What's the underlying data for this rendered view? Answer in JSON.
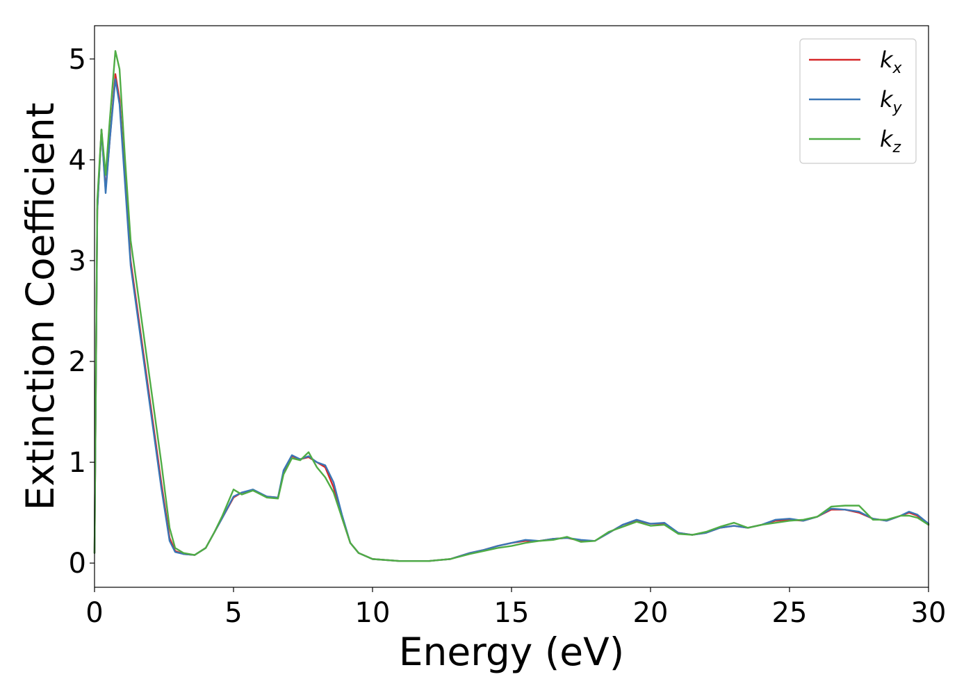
{
  "chart_data": {
    "type": "line",
    "xlabel": "Energy (eV)",
    "ylabel": "Extinction Coefficient",
    "xlim": [
      0,
      30
    ],
    "ylim": [
      -0.24,
      5.33
    ],
    "xticks": [
      0,
      5,
      10,
      15,
      20,
      25,
      30
    ],
    "yticks": [
      0,
      1,
      2,
      3,
      4,
      5
    ],
    "grid": false,
    "legend_position": "top-right",
    "series": [
      {
        "name": "k",
        "subscript": "x",
        "color": "#d62728",
        "x": [
          0,
          0.1,
          0.25,
          0.4,
          0.55,
          0.75,
          0.9,
          1.1,
          1.3,
          1.5,
          1.8,
          2.1,
          2.4,
          2.7,
          2.9,
          3.2,
          3.6,
          4.0,
          4.3,
          4.6,
          5.0,
          5.3,
          5.7,
          6.2,
          6.6,
          6.8,
          7.1,
          7.4,
          7.7,
          8.0,
          8.3,
          8.6,
          8.9,
          9.2,
          9.5,
          10.0,
          11.0,
          12.0,
          12.8,
          13.5,
          14.0,
          14.5,
          15.0,
          15.5,
          16.0,
          16.5,
          17.0,
          17.5,
          18.0,
          18.5,
          19.0,
          19.5,
          20.0,
          20.5,
          21.0,
          21.5,
          22.0,
          22.5,
          23.0,
          23.5,
          24.0,
          24.5,
          25.0,
          25.5,
          26.0,
          26.5,
          27.0,
          27.5,
          28.0,
          28.5,
          29.0,
          29.3,
          29.6,
          30.0
        ],
        "y": [
          0.1,
          3.5,
          4.3,
          3.7,
          4.2,
          4.85,
          4.6,
          3.8,
          3.0,
          2.6,
          2.0,
          1.4,
          0.8,
          0.25,
          0.12,
          0.09,
          0.08,
          0.15,
          0.3,
          0.45,
          0.65,
          0.7,
          0.72,
          0.66,
          0.65,
          0.9,
          1.06,
          1.03,
          1.05,
          1.0,
          0.95,
          0.75,
          0.45,
          0.2,
          0.1,
          0.04,
          0.02,
          0.02,
          0.04,
          0.1,
          0.13,
          0.17,
          0.2,
          0.22,
          0.22,
          0.24,
          0.25,
          0.22,
          0.22,
          0.3,
          0.38,
          0.42,
          0.39,
          0.39,
          0.3,
          0.28,
          0.3,
          0.35,
          0.37,
          0.35,
          0.38,
          0.42,
          0.43,
          0.42,
          0.46,
          0.53,
          0.53,
          0.5,
          0.44,
          0.42,
          0.47,
          0.5,
          0.47,
          0.38
        ]
      },
      {
        "name": "k",
        "subscript": "y",
        "color": "#3a76b6",
        "x": [
          0,
          0.1,
          0.25,
          0.4,
          0.55,
          0.75,
          0.9,
          1.1,
          1.3,
          1.5,
          1.8,
          2.1,
          2.4,
          2.7,
          2.9,
          3.2,
          3.6,
          4.0,
          4.3,
          4.6,
          5.0,
          5.3,
          5.7,
          6.2,
          6.6,
          6.8,
          7.1,
          7.4,
          7.7,
          8.0,
          8.3,
          8.6,
          8.9,
          9.2,
          9.5,
          10.0,
          11.0,
          12.0,
          12.8,
          13.5,
          14.0,
          14.5,
          15.0,
          15.5,
          16.0,
          16.5,
          17.0,
          17.5,
          18.0,
          18.5,
          19.0,
          19.5,
          20.0,
          20.5,
          21.0,
          21.5,
          22.0,
          22.5,
          23.0,
          23.5,
          24.0,
          24.5,
          25.0,
          25.5,
          26.0,
          26.5,
          27.0,
          27.5,
          28.0,
          28.5,
          29.0,
          29.3,
          29.6,
          30.0
        ],
        "y": [
          0.1,
          3.5,
          4.3,
          3.67,
          4.2,
          4.8,
          4.55,
          3.75,
          2.95,
          2.55,
          1.95,
          1.35,
          0.75,
          0.22,
          0.11,
          0.09,
          0.08,
          0.15,
          0.3,
          0.45,
          0.66,
          0.7,
          0.73,
          0.66,
          0.65,
          0.92,
          1.07,
          1.03,
          1.06,
          1.0,
          0.97,
          0.8,
          0.48,
          0.2,
          0.1,
          0.04,
          0.02,
          0.02,
          0.04,
          0.1,
          0.13,
          0.17,
          0.2,
          0.23,
          0.22,
          0.24,
          0.25,
          0.23,
          0.22,
          0.3,
          0.38,
          0.43,
          0.39,
          0.4,
          0.3,
          0.28,
          0.3,
          0.35,
          0.37,
          0.35,
          0.38,
          0.43,
          0.44,
          0.42,
          0.46,
          0.54,
          0.53,
          0.51,
          0.44,
          0.42,
          0.47,
          0.51,
          0.48,
          0.39
        ]
      },
      {
        "name": "k",
        "subscript": "z",
        "color": "#4fac45",
        "x": [
          0,
          0.1,
          0.25,
          0.4,
          0.55,
          0.75,
          0.9,
          1.1,
          1.3,
          1.5,
          1.8,
          2.1,
          2.4,
          2.7,
          2.9,
          3.2,
          3.6,
          4.0,
          4.3,
          4.6,
          5.0,
          5.3,
          5.7,
          6.2,
          6.6,
          6.8,
          7.1,
          7.4,
          7.7,
          8.0,
          8.3,
          8.6,
          8.9,
          9.2,
          9.5,
          10.0,
          11.0,
          12.0,
          12.8,
          13.5,
          14.0,
          14.5,
          15.0,
          15.5,
          16.0,
          16.5,
          17.0,
          17.5,
          18.0,
          18.5,
          19.0,
          19.5,
          20.0,
          20.5,
          21.0,
          21.5,
          22.0,
          22.5,
          23.0,
          23.5,
          24.0,
          24.5,
          25.0,
          25.5,
          26.0,
          26.5,
          27.0,
          27.5,
          28.0,
          28.5,
          29.0,
          29.3,
          29.6,
          30.0
        ],
        "y": [
          0.1,
          3.6,
          4.3,
          3.85,
          4.4,
          5.08,
          4.9,
          4.0,
          3.2,
          2.8,
          2.2,
          1.6,
          1.0,
          0.35,
          0.15,
          0.1,
          0.08,
          0.15,
          0.3,
          0.47,
          0.73,
          0.68,
          0.72,
          0.65,
          0.64,
          0.88,
          1.04,
          1.02,
          1.1,
          0.95,
          0.85,
          0.7,
          0.45,
          0.2,
          0.1,
          0.04,
          0.02,
          0.02,
          0.04,
          0.09,
          0.12,
          0.15,
          0.17,
          0.2,
          0.22,
          0.23,
          0.26,
          0.21,
          0.22,
          0.31,
          0.36,
          0.41,
          0.37,
          0.38,
          0.29,
          0.28,
          0.31,
          0.36,
          0.4,
          0.35,
          0.38,
          0.4,
          0.42,
          0.43,
          0.46,
          0.56,
          0.57,
          0.57,
          0.43,
          0.43,
          0.47,
          0.47,
          0.45,
          0.38
        ]
      }
    ]
  }
}
